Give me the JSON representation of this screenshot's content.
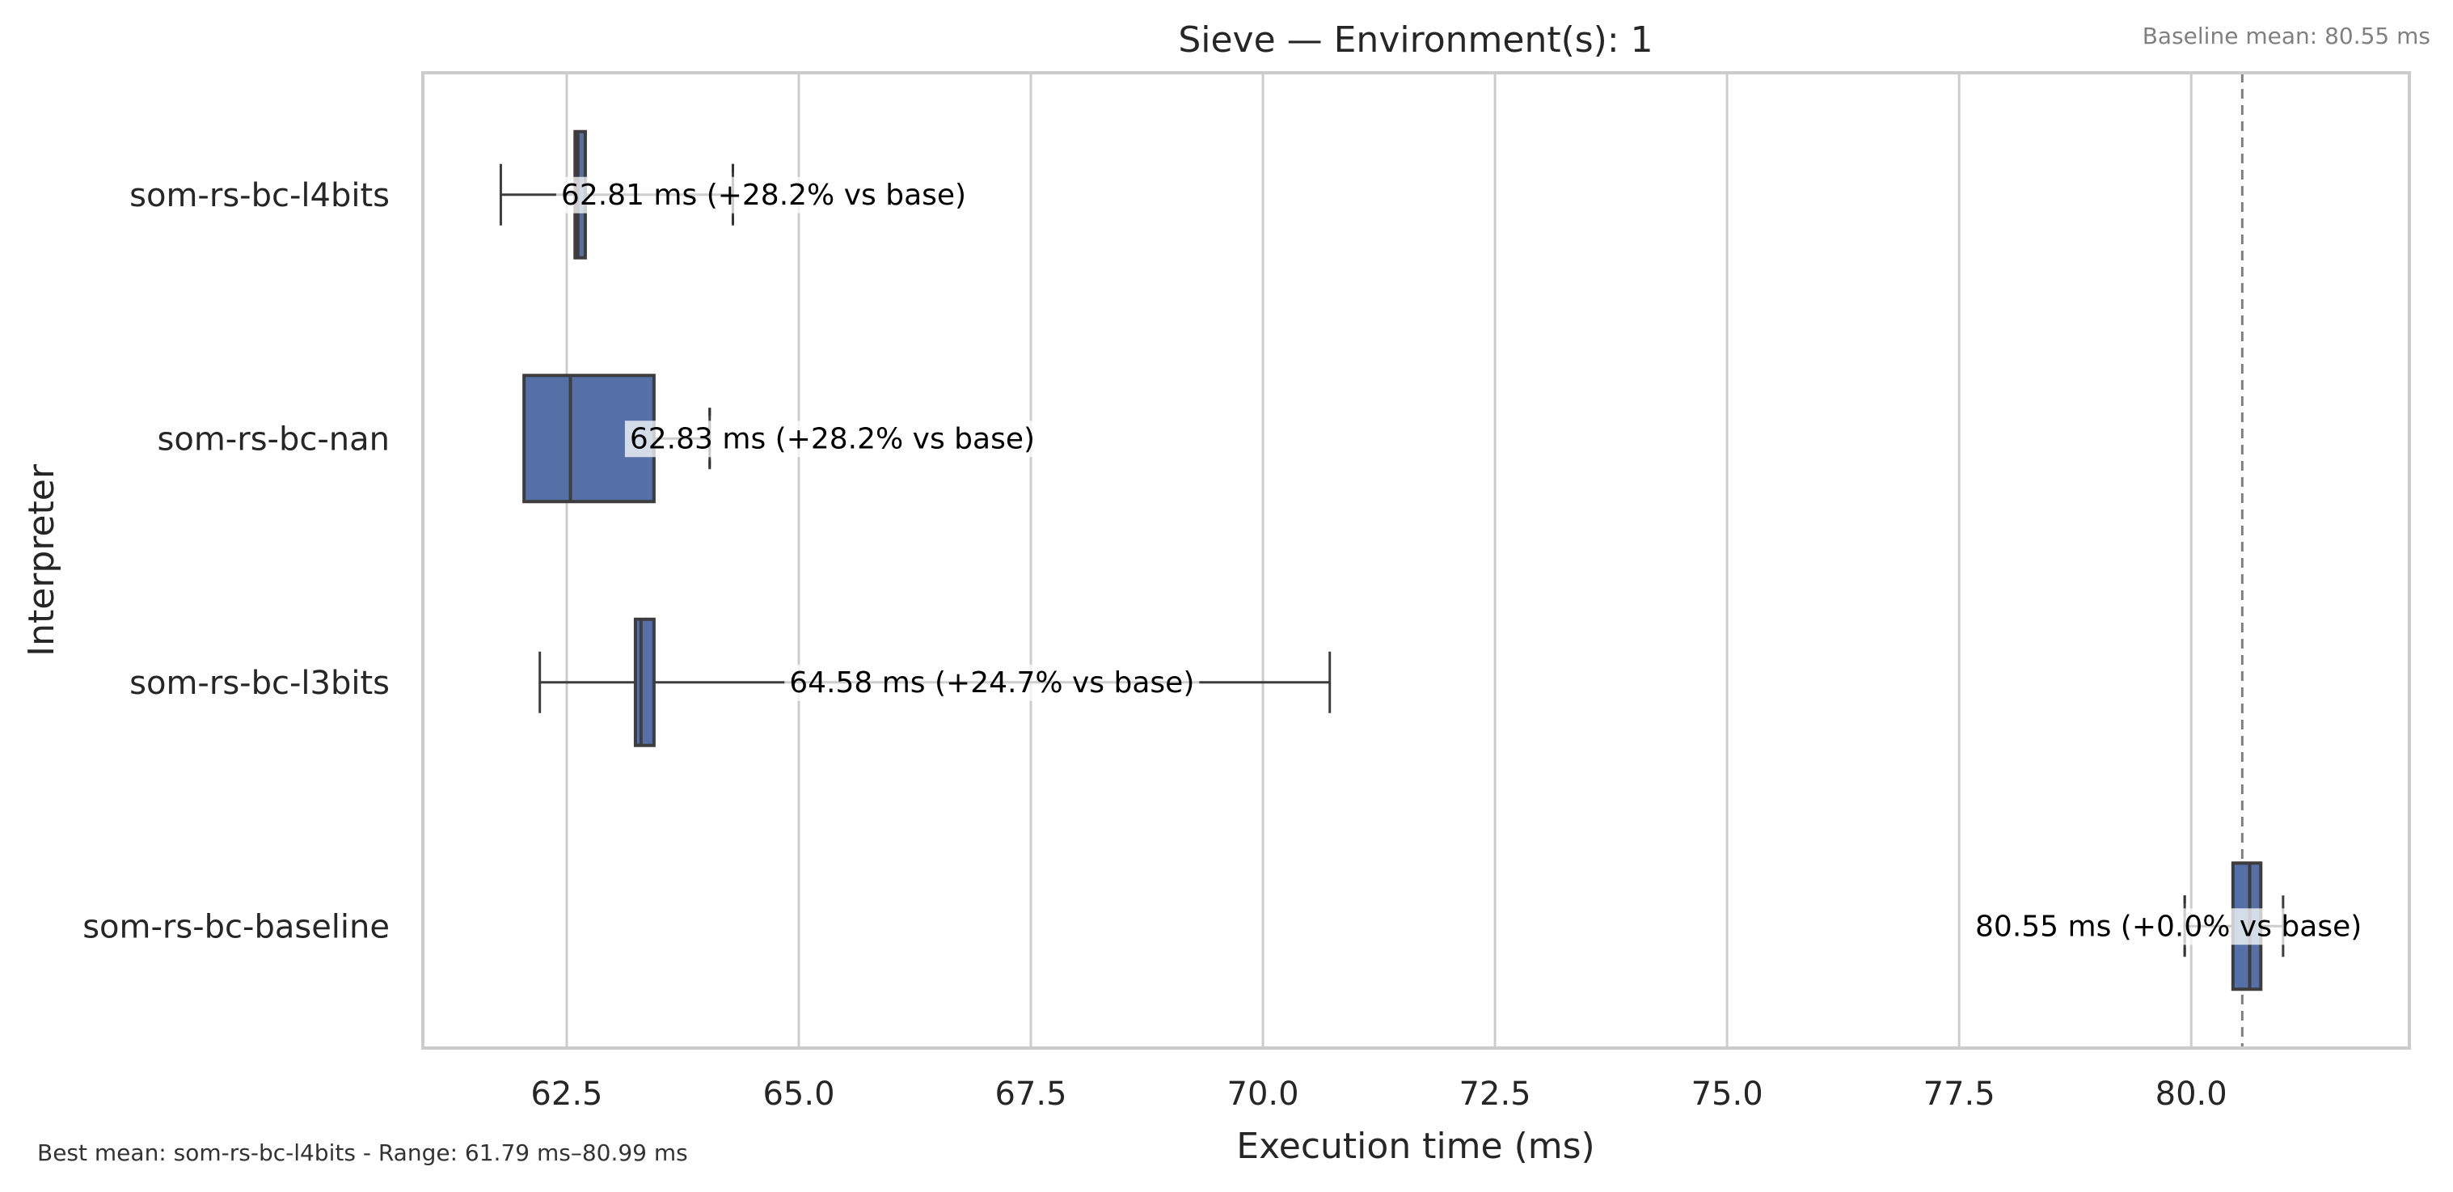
{
  "chart_data": {
    "type": "box",
    "title": "Sieve — Environment(s): 1",
    "baseline_note": "Baseline mean: 80.55 ms",
    "footer_note": "Best mean: som-rs-bc-l4bits - Range: 61.79 ms–80.99 ms",
    "xlabel": "Execution time (ms)",
    "ylabel": "Interpreter",
    "xlim": [
      60.95,
      82.35
    ],
    "xticks": [
      62.5,
      65.0,
      67.5,
      70.0,
      72.5,
      75.0,
      77.5,
      80.0
    ],
    "xtick_labels": [
      "62.5",
      "65.0",
      "67.5",
      "70.0",
      "72.5",
      "75.0",
      "77.5",
      "80.0"
    ],
    "grid": "x",
    "baseline_value": 80.55,
    "box_color": "#5470a6",
    "categories": [
      "som-rs-bc-l4bits",
      "som-rs-bc-nan",
      "som-rs-bc-l3bits",
      "som-rs-bc-baseline"
    ],
    "boxes": [
      {
        "name": "som-rs-bc-l4bits",
        "whisker_low": 61.79,
        "q1": 62.59,
        "median": 62.62,
        "q3": 62.7,
        "whisker_high": 64.29,
        "mean_line": 64.29,
        "annotation": "62.81 ms  (+28.2% vs base)"
      },
      {
        "name": "som-rs-bc-nan",
        "whisker_low": 62.04,
        "q1": 62.04,
        "median": 62.54,
        "q3": 63.44,
        "whisker_high": 64.04,
        "mean_line": 64.04,
        "annotation": "62.83 ms  (+28.2% vs base)"
      },
      {
        "name": "som-rs-bc-l3bits",
        "whisker_low": 62.21,
        "q1": 63.24,
        "median": 63.3,
        "q3": 63.44,
        "whisker_high": 70.72,
        "mean_line": null,
        "annotation": "64.58 ms  (+24.7% vs base)"
      },
      {
        "name": "som-rs-bc-baseline",
        "whisker_low": 79.93,
        "q1": 80.45,
        "median": 80.63,
        "q3": 80.75,
        "whisker_high": 80.99,
        "mean_line": 79.93,
        "annotation": "80.55 ms  (+0.0% vs base)"
      }
    ]
  }
}
